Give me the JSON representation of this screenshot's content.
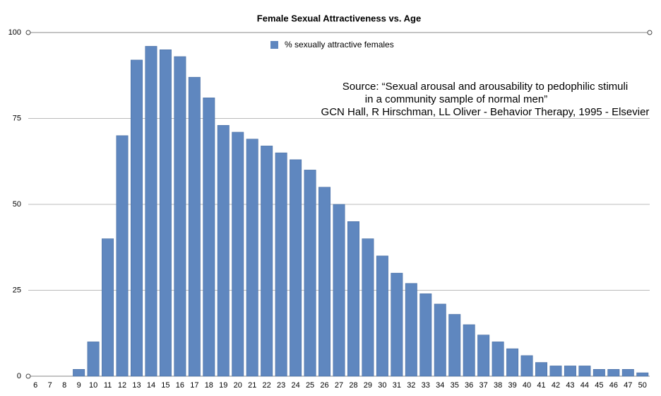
{
  "chart_data": {
    "type": "bar",
    "title": "Female Sexual Attractiveness vs. Age",
    "categories": [
      "6",
      "7",
      "8",
      "9",
      "10",
      "11",
      "12",
      "13",
      "14",
      "15",
      "16",
      "17",
      "18",
      "19",
      "20",
      "21",
      "22",
      "23",
      "24",
      "25",
      "26",
      "27",
      "28",
      "29",
      "30",
      "31",
      "32",
      "33",
      "34",
      "35",
      "36",
      "37",
      "38",
      "39",
      "40",
      "41",
      "42",
      "43",
      "44",
      "45",
      "46",
      "47",
      "50"
    ],
    "series": [
      {
        "name": "% sexually attractive females",
        "color": "#5f87bf",
        "values": [
          0,
          0,
          0,
          2,
          10,
          40,
          70,
          92,
          96,
          95,
          93,
          87,
          81,
          73,
          71,
          69,
          67,
          65,
          63,
          60,
          55,
          50,
          45,
          40,
          35,
          30,
          27,
          24,
          21,
          18,
          15,
          12,
          10,
          8,
          6,
          4,
          3,
          3,
          3,
          2,
          2,
          2,
          1
        ]
      }
    ],
    "ylim": [
      0,
      100
    ],
    "yticks": [
      0,
      25,
      50,
      75,
      100
    ],
    "grid": true,
    "annotations": [
      "Source: “Sexual arousal and arousability to pedophilic stimuli",
      "in a community sample of normal men”",
      "GCN Hall, R Hirschman, LL Oliver - Behavior Therapy, 1995 - Elsevier"
    ]
  }
}
